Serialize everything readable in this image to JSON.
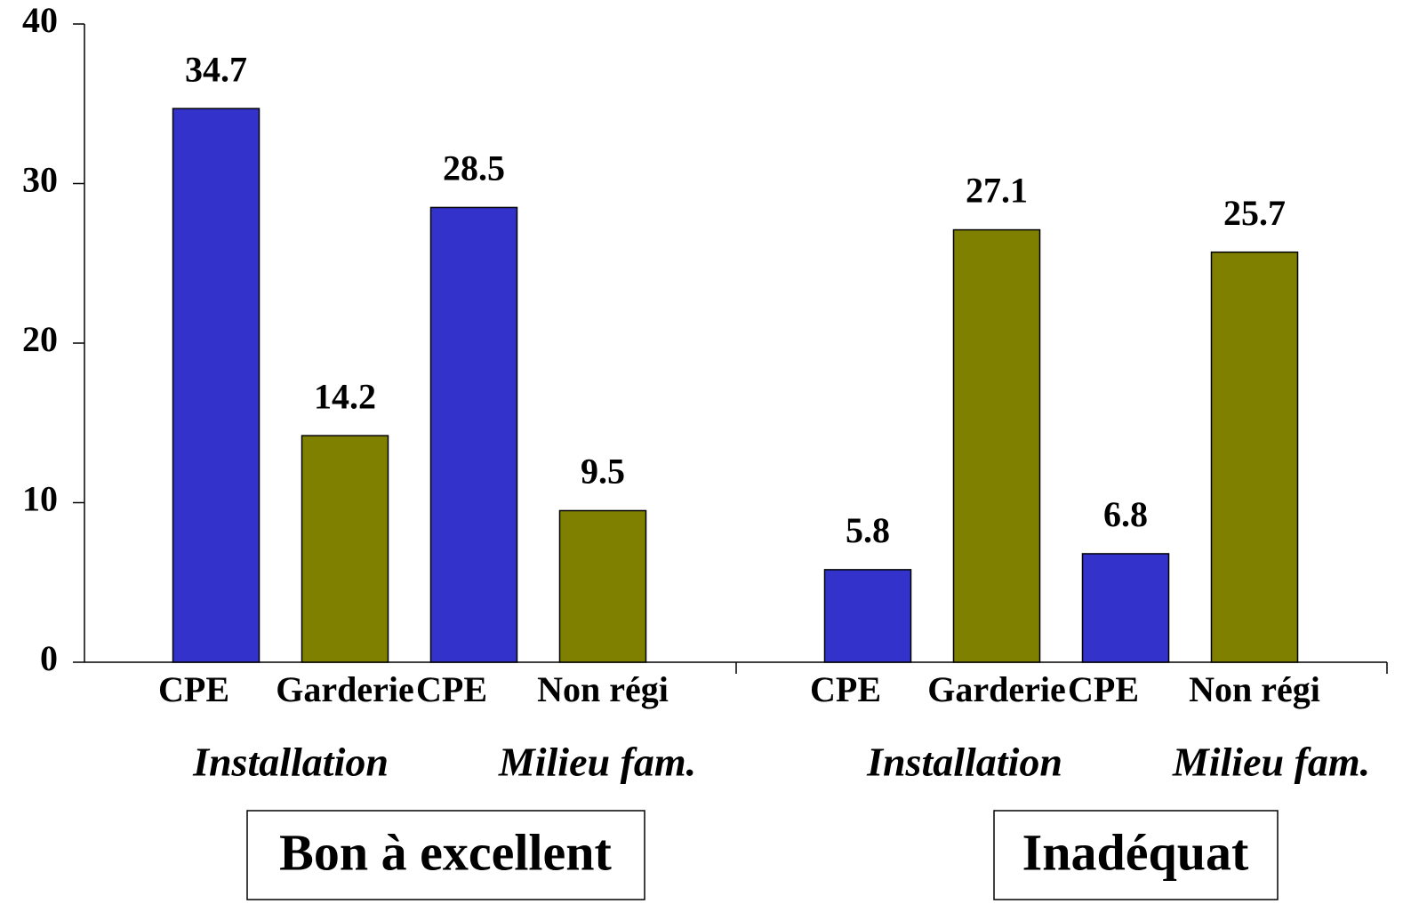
{
  "chart_data": {
    "type": "bar",
    "categories": [
      "CPE",
      "Garderie",
      "CPE",
      "Non régi",
      "CPE",
      "Garderie",
      "CPE",
      "Non régi"
    ],
    "values": [
      34.7,
      14.2,
      28.5,
      9.5,
      5.8,
      27.1,
      6.8,
      25.7
    ],
    "colors": [
      "#3333cc",
      "#808000",
      "#3333cc",
      "#808000",
      "#3333cc",
      "#808000",
      "#3333cc",
      "#808000"
    ],
    "subgroup_labels": [
      "Installation",
      "Milieu fam.",
      "Installation",
      "Milieu fam."
    ],
    "group_labels": [
      "Bon à excellent",
      "Inadéquat"
    ],
    "ylim": [
      0,
      40
    ],
    "yticks": [
      0,
      10,
      20,
      30,
      40
    ],
    "grid": false
  }
}
